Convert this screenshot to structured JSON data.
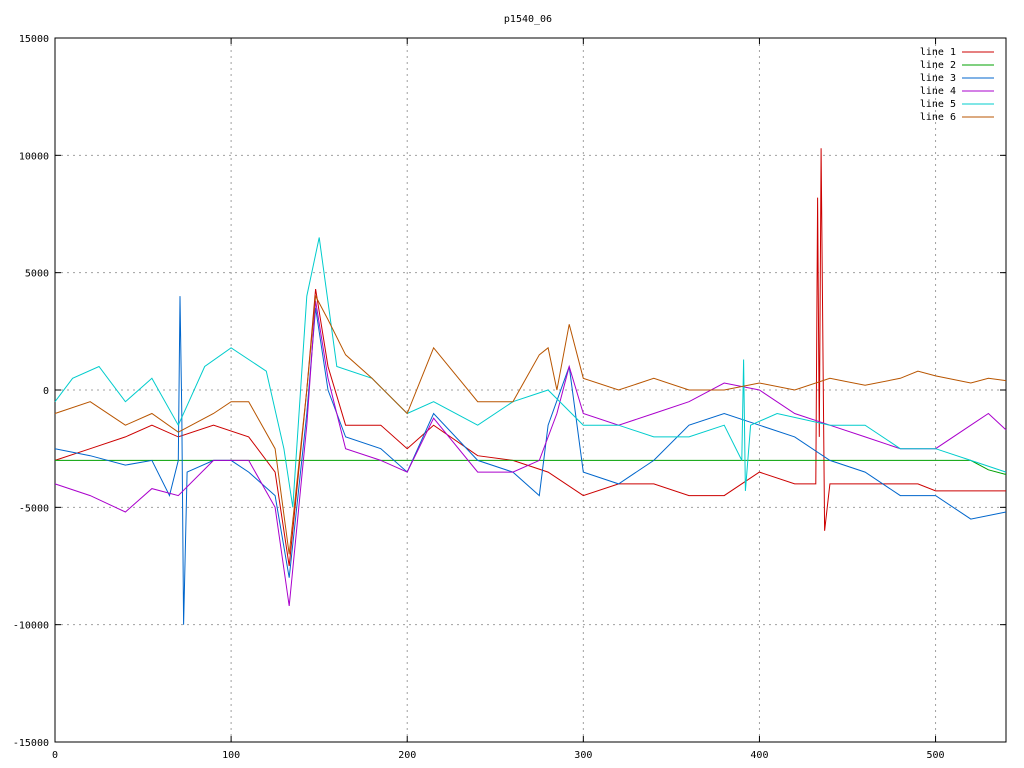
{
  "chart_data": {
    "type": "line",
    "title": "p1540_06",
    "xlabel": "",
    "ylabel": "",
    "xlim": [
      0,
      540
    ],
    "ylim": [
      -15000,
      15000
    ],
    "xticks": [
      0,
      100,
      200,
      300,
      400,
      500
    ],
    "yticks": [
      -15000,
      -10000,
      -5000,
      0,
      5000,
      10000,
      15000
    ],
    "grid": true,
    "legend_position": "top-right",
    "series": [
      {
        "name": "line 1",
        "color": "#cc0000",
        "points": [
          [
            0,
            -3000
          ],
          [
            20,
            -2500
          ],
          [
            40,
            -2000
          ],
          [
            55,
            -1500
          ],
          [
            70,
            -2000
          ],
          [
            90,
            -1500
          ],
          [
            110,
            -2000
          ],
          [
            125,
            -3500
          ],
          [
            133,
            -7500
          ],
          [
            143,
            0
          ],
          [
            148,
            4300
          ],
          [
            155,
            1000
          ],
          [
            165,
            -1500
          ],
          [
            185,
            -1500
          ],
          [
            200,
            -2500
          ],
          [
            215,
            -1500
          ],
          [
            240,
            -2800
          ],
          [
            260,
            -3000
          ],
          [
            280,
            -3500
          ],
          [
            300,
            -4500
          ],
          [
            320,
            -4000
          ],
          [
            340,
            -4000
          ],
          [
            360,
            -4500
          ],
          [
            380,
            -4500
          ],
          [
            400,
            -3500
          ],
          [
            420,
            -4000
          ],
          [
            432,
            -4000
          ],
          [
            433,
            8200
          ],
          [
            434,
            -2000
          ],
          [
            435,
            10300
          ],
          [
            437,
            -6000
          ],
          [
            440,
            -4000
          ],
          [
            460,
            -4000
          ],
          [
            480,
            -4000
          ],
          [
            490,
            -4000
          ],
          [
            500,
            -4300
          ],
          [
            520,
            -4300
          ],
          [
            540,
            -4300
          ]
        ]
      },
      {
        "name": "line 2",
        "color": "#00a000",
        "points": [
          [
            0,
            -3000
          ],
          [
            100,
            -3000
          ],
          [
            200,
            -3000
          ],
          [
            300,
            -3000
          ],
          [
            400,
            -3000
          ],
          [
            500,
            -3000
          ],
          [
            520,
            -3000
          ],
          [
            530,
            -3400
          ],
          [
            540,
            -3600
          ]
        ]
      },
      {
        "name": "line 3",
        "color": "#0066cc",
        "points": [
          [
            0,
            -2500
          ],
          [
            20,
            -2800
          ],
          [
            40,
            -3200
          ],
          [
            55,
            -3000
          ],
          [
            65,
            -4500
          ],
          [
            70,
            -3000
          ],
          [
            71,
            4000
          ],
          [
            72,
            -1000
          ],
          [
            73,
            -10000
          ],
          [
            75,
            -3500
          ],
          [
            90,
            -3000
          ],
          [
            100,
            -3000
          ],
          [
            110,
            -3500
          ],
          [
            125,
            -4500
          ],
          [
            133,
            -8000
          ],
          [
            143,
            -1000
          ],
          [
            148,
            3500
          ],
          [
            155,
            0
          ],
          [
            165,
            -2000
          ],
          [
            185,
            -2500
          ],
          [
            200,
            -3500
          ],
          [
            215,
            -1000
          ],
          [
            240,
            -3000
          ],
          [
            260,
            -3500
          ],
          [
            275,
            -4500
          ],
          [
            280,
            -1500
          ],
          [
            292,
            1000
          ],
          [
            300,
            -3500
          ],
          [
            320,
            -4000
          ],
          [
            340,
            -3000
          ],
          [
            360,
            -1500
          ],
          [
            380,
            -1000
          ],
          [
            400,
            -1500
          ],
          [
            420,
            -2000
          ],
          [
            440,
            -3000
          ],
          [
            460,
            -3500
          ],
          [
            480,
            -4500
          ],
          [
            500,
            -4500
          ],
          [
            520,
            -5500
          ],
          [
            540,
            -5200
          ]
        ]
      },
      {
        "name": "line 4",
        "color": "#aa00cc",
        "points": [
          [
            0,
            -4000
          ],
          [
            20,
            -4500
          ],
          [
            40,
            -5200
          ],
          [
            55,
            -4200
          ],
          [
            70,
            -4500
          ],
          [
            90,
            -3000
          ],
          [
            110,
            -3000
          ],
          [
            125,
            -5000
          ],
          [
            133,
            -9200
          ],
          [
            143,
            -1500
          ],
          [
            148,
            3800
          ],
          [
            155,
            500
          ],
          [
            165,
            -2500
          ],
          [
            185,
            -3000
          ],
          [
            200,
            -3500
          ],
          [
            215,
            -1200
          ],
          [
            240,
            -3500
          ],
          [
            260,
            -3500
          ],
          [
            275,
            -3000
          ],
          [
            285,
            -1000
          ],
          [
            292,
            1000
          ],
          [
            300,
            -1000
          ],
          [
            320,
            -1500
          ],
          [
            340,
            -1000
          ],
          [
            360,
            -500
          ],
          [
            380,
            300
          ],
          [
            400,
            0
          ],
          [
            420,
            -1000
          ],
          [
            440,
            -1500
          ],
          [
            460,
            -2000
          ],
          [
            480,
            -2500
          ],
          [
            500,
            -2500
          ],
          [
            520,
            -1500
          ],
          [
            530,
            -1000
          ],
          [
            540,
            -1700
          ]
        ]
      },
      {
        "name": "line 5",
        "color": "#00cccc",
        "points": [
          [
            0,
            -500
          ],
          [
            10,
            500
          ],
          [
            25,
            1000
          ],
          [
            40,
            -500
          ],
          [
            55,
            500
          ],
          [
            70,
            -1500
          ],
          [
            85,
            1000
          ],
          [
            100,
            1800
          ],
          [
            120,
            800
          ],
          [
            130,
            -2500
          ],
          [
            135,
            -5000
          ],
          [
            143,
            4000
          ],
          [
            150,
            6500
          ],
          [
            160,
            1000
          ],
          [
            180,
            500
          ],
          [
            200,
            -1000
          ],
          [
            215,
            -500
          ],
          [
            240,
            -1500
          ],
          [
            260,
            -500
          ],
          [
            280,
            0
          ],
          [
            300,
            -1500
          ],
          [
            320,
            -1500
          ],
          [
            340,
            -2000
          ],
          [
            360,
            -2000
          ],
          [
            380,
            -1500
          ],
          [
            390,
            -3000
          ],
          [
            391,
            1300
          ],
          [
            392,
            -4300
          ],
          [
            395,
            -1500
          ],
          [
            410,
            -1000
          ],
          [
            440,
            -1500
          ],
          [
            460,
            -1500
          ],
          [
            480,
            -2500
          ],
          [
            500,
            -2500
          ],
          [
            520,
            -3000
          ],
          [
            540,
            -3500
          ]
        ]
      },
      {
        "name": "line 6",
        "color": "#b85500",
        "points": [
          [
            0,
            -1000
          ],
          [
            20,
            -500
          ],
          [
            40,
            -1500
          ],
          [
            55,
            -1000
          ],
          [
            70,
            -1800
          ],
          [
            90,
            -1000
          ],
          [
            100,
            -500
          ],
          [
            110,
            -500
          ],
          [
            125,
            -2500
          ],
          [
            133,
            -7000
          ],
          [
            143,
            0
          ],
          [
            148,
            4000
          ],
          [
            155,
            3000
          ],
          [
            165,
            1500
          ],
          [
            180,
            500
          ],
          [
            200,
            -1000
          ],
          [
            215,
            1800
          ],
          [
            240,
            -500
          ],
          [
            260,
            -500
          ],
          [
            275,
            1500
          ],
          [
            280,
            1800
          ],
          [
            285,
            0
          ],
          [
            292,
            2800
          ],
          [
            300,
            500
          ],
          [
            320,
            0
          ],
          [
            340,
            500
          ],
          [
            360,
            0
          ],
          [
            380,
            0
          ],
          [
            400,
            300
          ],
          [
            420,
            0
          ],
          [
            440,
            500
          ],
          [
            460,
            200
          ],
          [
            480,
            500
          ],
          [
            490,
            800
          ],
          [
            500,
            600
          ],
          [
            520,
            300
          ],
          [
            530,
            500
          ],
          [
            540,
            400
          ]
        ]
      }
    ]
  }
}
